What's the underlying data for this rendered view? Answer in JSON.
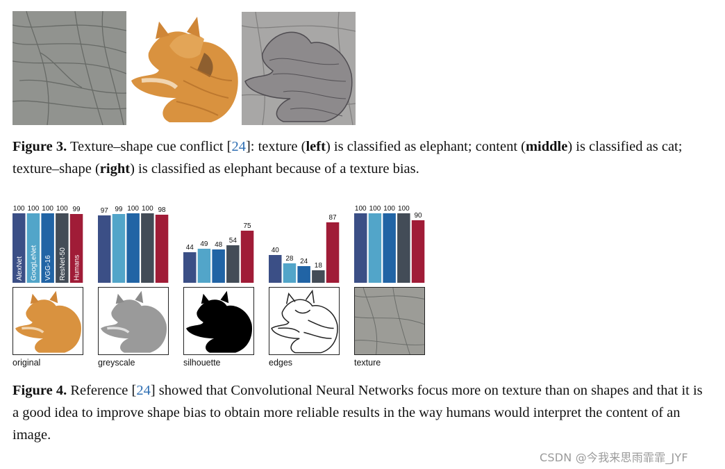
{
  "figure3": {
    "caption_label": "Figure 3.",
    "caption_part1": " Texture–shape cue conflict [",
    "ref": "24",
    "caption_part2": "]: texture (",
    "bold_left": "left",
    "caption_part3": ") is classified as elephant; content (",
    "bold_middle": "middle",
    "caption_part4": ") is classified as cat; texture–shape (",
    "bold_right": "right",
    "caption_part5": ") is classified as elephant because of a texture bias."
  },
  "figure4": {
    "caption_label": "Figure 4.",
    "caption_part1": " Reference [",
    "ref": "24",
    "caption_part2": "] showed that Convolutional Neural Networks focus more on texture than on shapes and that it is a good idea to improve shape bias to obtain more reliable results in the way humans would interpret the content of an image."
  },
  "chart_data": {
    "type": "bar",
    "series_names": [
      "AlexNet",
      "GoogLeNet",
      "VGG-16",
      "ResNet-50",
      "Humans"
    ],
    "series_colors": [
      "#3b4f86",
      "#52a5c9",
      "#2164a5",
      "#434c57",
      "#a01c37"
    ],
    "ylim": [
      0,
      100
    ],
    "panels": [
      {
        "condition": "original",
        "values": [
          100,
          100,
          100,
          100,
          99
        ]
      },
      {
        "condition": "greyscale",
        "values": [
          97,
          99,
          100,
          100,
          98
        ]
      },
      {
        "condition": "silhouette",
        "values": [
          44,
          49,
          48,
          54,
          75
        ]
      },
      {
        "condition": "edges",
        "values": [
          40,
          28,
          24,
          18,
          87
        ]
      },
      {
        "condition": "texture",
        "values": [
          100,
          100,
          100,
          100,
          90
        ]
      }
    ]
  },
  "watermark": "CSDN @今我来思雨霏霏_JYF"
}
